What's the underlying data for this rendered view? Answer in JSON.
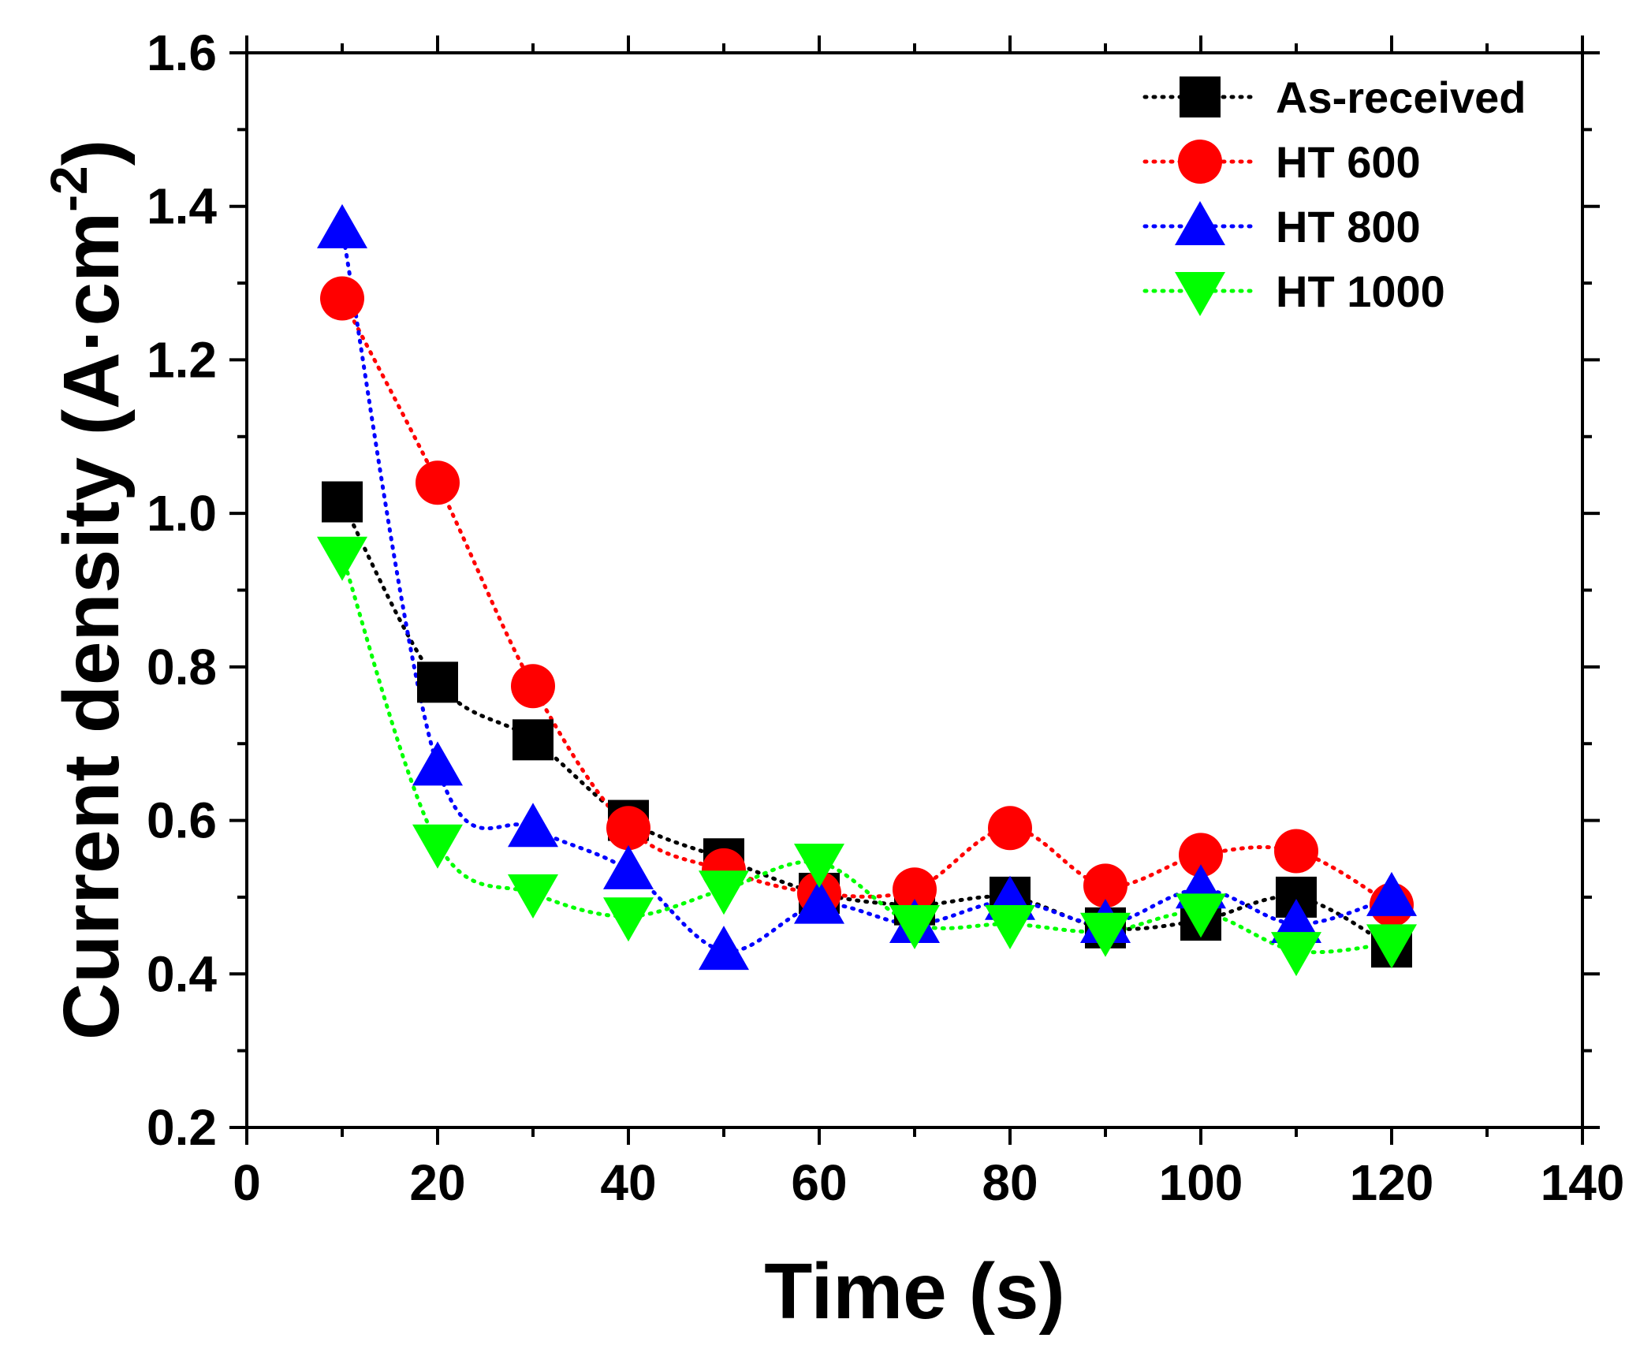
{
  "chart_data": {
    "type": "line",
    "title": "",
    "xlabel": "Time (s)",
    "ylabel_main": "Current density (A·cm",
    "ylabel_sup": "-2",
    "ylabel_close": ")",
    "xlim": [
      0,
      140
    ],
    "ylim": [
      0.2,
      1.6
    ],
    "grid": false,
    "legend_position": "top-right",
    "xticks": [
      0,
      20,
      40,
      60,
      80,
      100,
      120,
      140
    ],
    "xtick_labels": [
      "0",
      "20",
      "40",
      "60",
      "80",
      "100",
      "120",
      "140"
    ],
    "yticks": [
      0.2,
      0.4,
      0.6,
      0.8,
      1.0,
      1.2,
      1.4,
      1.6
    ],
    "ytick_labels": [
      "0.2",
      "0.4",
      "0.6",
      "0.8",
      "1.0",
      "1.2",
      "1.4",
      "1.6"
    ],
    "x": [
      10,
      20,
      30,
      40,
      50,
      60,
      70,
      80,
      90,
      100,
      110,
      120
    ],
    "series": [
      {
        "name": "As-received",
        "color": "#000000",
        "marker": "square",
        "values": [
          1.015,
          0.78,
          0.705,
          0.6,
          0.55,
          0.505,
          0.49,
          0.5,
          0.46,
          0.47,
          0.5,
          0.435
        ]
      },
      {
        "name": "HT 600",
        "color": "#ff0000",
        "marker": "circle",
        "values": [
          1.28,
          1.04,
          0.775,
          0.59,
          0.535,
          0.505,
          0.51,
          0.59,
          0.515,
          0.555,
          0.56,
          0.49
        ]
      },
      {
        "name": "HT 800",
        "color": "#0000ff",
        "marker": "triangle-up",
        "values": [
          1.37,
          0.67,
          0.59,
          0.535,
          0.43,
          0.49,
          0.465,
          0.495,
          0.465,
          0.51,
          0.465,
          0.5
        ]
      },
      {
        "name": "HT 1000",
        "color": "#00ff00",
        "marker": "triangle-down",
        "values": [
          0.945,
          0.57,
          0.505,
          0.475,
          0.51,
          0.545,
          0.465,
          0.465,
          0.455,
          0.48,
          0.43,
          0.44
        ]
      }
    ]
  }
}
